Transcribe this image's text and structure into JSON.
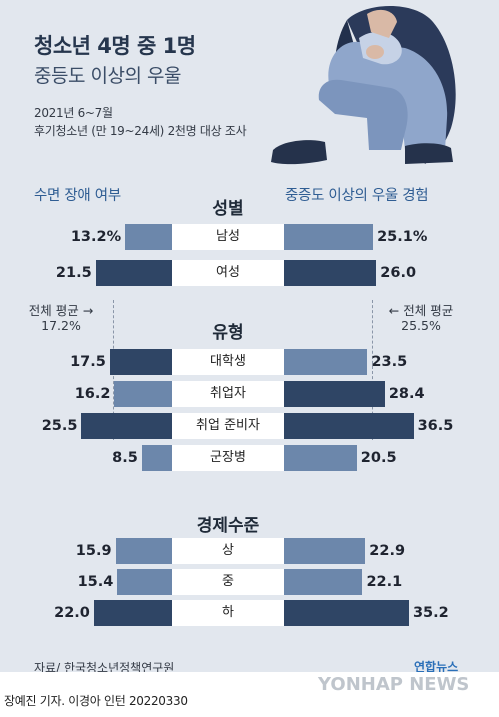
{
  "header": {
    "title": "청소년 4명 중 1명",
    "subtitle": "중등도 이상의 우울",
    "period": "2021년 6~7월",
    "survey": "후기청소년 (만 19~24세) 2천명 대상 조사"
  },
  "columns": {
    "left": "수면 장애 여부",
    "right": "중증도 이상의 우울 경험"
  },
  "averages": {
    "left_label": "전체 평균",
    "left_value": "17.2%",
    "right_label": "전체 평균",
    "right_value": "25.5%"
  },
  "chart_data": {
    "type": "bar",
    "title": "청소년 4명 중 1명 중등도 이상의 우울",
    "groups": [
      {
        "name": "성별",
        "categories": [
          "남성",
          "여성"
        ],
        "left_display": [
          "13.2%",
          "21.5"
        ],
        "right_display": [
          "25.1%",
          "26.0"
        ]
      },
      {
        "name": "유형",
        "categories": [
          "대학생",
          "취업자",
          "취업 준비자",
          "군장병"
        ],
        "left_display": [
          "17.5",
          "16.2",
          "25.5",
          "8.5"
        ],
        "right_display": [
          "23.5",
          "28.4",
          "36.5",
          "20.5"
        ]
      },
      {
        "name": "경제수준",
        "categories": [
          "상",
          "중",
          "하"
        ],
        "left_display": [
          "15.9",
          "15.4",
          "22.0"
        ],
        "right_display": [
          "22.9",
          "22.1",
          "35.2"
        ]
      }
    ],
    "series": [
      {
        "name": "수면 장애 여부",
        "values": [
          13.2,
          21.5,
          17.5,
          16.2,
          25.5,
          8.5,
          15.9,
          15.4,
          22.0
        ],
        "average": 17.2
      },
      {
        "name": "중증도 이상의 우울 경험",
        "values": [
          25.1,
          26.0,
          23.5,
          28.4,
          36.5,
          20.5,
          22.9,
          22.1,
          35.2
        ],
        "average": 25.5
      }
    ],
    "unit": "%",
    "colors": {
      "below_average": "#6c87ab",
      "above_average": "#2f4565"
    }
  },
  "footer": {
    "source": "자료/ 한국청소년정책연구원",
    "logo": "연합뉴스",
    "credit": "장예진 기자. 이경아 인턴  20220330",
    "watermark": "YONHAP NEWS"
  }
}
